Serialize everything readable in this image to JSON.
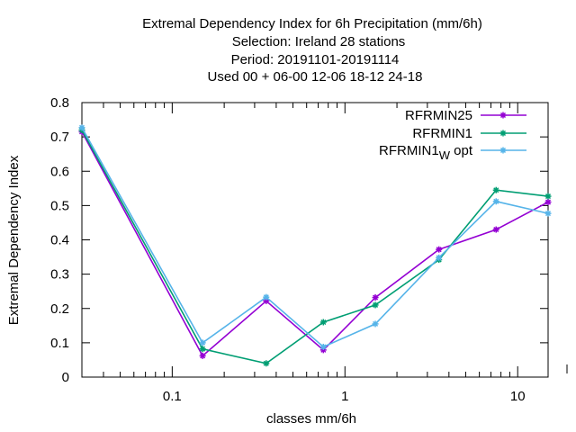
{
  "chart_data": {
    "type": "line",
    "title_lines": [
      "Extremal Dependency Index  for 6h Precipitation (mm/6h)",
      "Selection: Ireland     28 stations",
      "Period: 20191101-20191114",
      "Used  00 + 06-00 12-06 18-12 24-18"
    ],
    "xlabel": "classes mm/6h",
    "ylabel": "Extremal Dependency Index",
    "x_scale": "log",
    "xlim": [
      0.03,
      15
    ],
    "ylim": [
      0,
      0.8
    ],
    "x_ticks": [
      {
        "value": 0.1,
        "label": "0.1"
      },
      {
        "value": 1,
        "label": "1"
      },
      {
        "value": 10,
        "label": "10"
      }
    ],
    "y_ticks": [
      {
        "value": 0,
        "label": "0"
      },
      {
        "value": 0.1,
        "label": "0.1"
      },
      {
        "value": 0.2,
        "label": "0.2"
      },
      {
        "value": 0.3,
        "label": "0.3"
      },
      {
        "value": 0.4,
        "label": "0.4"
      },
      {
        "value": 0.5,
        "label": "0.5"
      },
      {
        "value": 0.6,
        "label": "0.6"
      },
      {
        "value": 0.7,
        "label": "0.7"
      },
      {
        "value": 0.8,
        "label": "0.8"
      }
    ],
    "grid": false,
    "legend_position": "top-right",
    "series": [
      {
        "name": "RFRMIN25",
        "color": "#9400d3",
        "x": [
          0.03,
          0.15,
          0.35,
          0.75,
          1.5,
          3.5,
          7.5,
          15
        ],
        "values": [
          0.715,
          0.062,
          0.222,
          0.079,
          0.232,
          0.372,
          0.43,
          0.51
        ]
      },
      {
        "name": "RFRMIN1",
        "color": "#009e73",
        "x": [
          0.03,
          0.15,
          0.35,
          0.75,
          1.5,
          3.5,
          7.5,
          15
        ],
        "values": [
          0.72,
          0.082,
          0.04,
          0.16,
          0.21,
          0.342,
          0.545,
          0.527
        ]
      },
      {
        "name": "RFRMIN1",
        "name_subscript": "W",
        "name_suffix": "opt",
        "color": "#56b4e9",
        "x": [
          0.03,
          0.15,
          0.35,
          0.75,
          1.5,
          3.5,
          7.5,
          15
        ],
        "values": [
          0.727,
          0.1,
          0.233,
          0.088,
          0.155,
          0.348,
          0.512,
          0.477
        ]
      }
    ]
  }
}
